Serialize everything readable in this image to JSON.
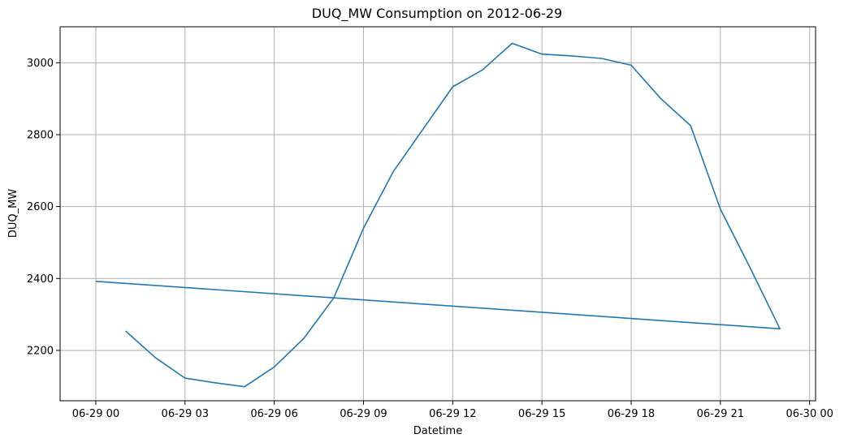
{
  "chart_data": {
    "type": "line",
    "title": "DUQ_MW Consumption on 2012-06-29",
    "xlabel": "Datetime",
    "ylabel": "DUQ_MW",
    "grid": true,
    "legend": "none",
    "xlim": [
      "06-28 22:48",
      "06-30 00:12"
    ],
    "ylim": [
      2060,
      3100
    ],
    "x_ticks": [
      {
        "label": "06-29 00",
        "value": "06-29 00:00"
      },
      {
        "label": "06-29 03",
        "value": "06-29 03:00"
      },
      {
        "label": "06-29 06",
        "value": "06-29 06:00"
      },
      {
        "label": "06-29 09",
        "value": "06-29 09:00"
      },
      {
        "label": "06-29 12",
        "value": "06-29 12:00"
      },
      {
        "label": "06-29 15",
        "value": "06-29 15:00"
      },
      {
        "label": "06-29 18",
        "value": "06-29 18:00"
      },
      {
        "label": "06-29 21",
        "value": "06-29 21:00"
      },
      {
        "label": "06-30 00",
        "value": "06-30 00:00"
      }
    ],
    "y_ticks": [
      2200,
      2400,
      2600,
      2800,
      3000
    ],
    "series": [
      {
        "color": "#1f77b4",
        "x": [
          "06-29 01:00",
          "06-29 02:00",
          "06-29 03:00",
          "06-29 04:00",
          "06-29 05:00",
          "06-29 06:00",
          "06-29 07:00",
          "06-29 08:00",
          "06-29 09:00",
          "06-29 10:00",
          "06-29 11:00",
          "06-29 12:00",
          "06-29 13:00",
          "06-29 14:00",
          "06-29 15:00",
          "06-29 16:00",
          "06-29 17:00",
          "06-29 18:00",
          "06-29 19:00",
          "06-29 20:00",
          "06-29 21:00",
          "06-29 22:00",
          "06-29 23:00",
          "06-29 00:00"
        ],
        "values": [
          2254,
          2180,
          2123,
          2110,
          2099,
          2154,
          2234,
          2346,
          2540,
          2697,
          2815,
          2933,
          2980,
          3054,
          3024,
          3019,
          3012,
          2993,
          2900,
          2825,
          2593,
          2430,
          2260,
          2392
        ]
      }
    ]
  }
}
